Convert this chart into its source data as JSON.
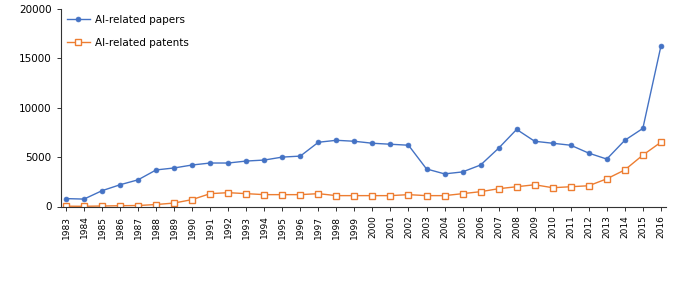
{
  "years": [
    1983,
    1984,
    1985,
    1986,
    1987,
    1988,
    1989,
    1990,
    1991,
    1992,
    1993,
    1994,
    1995,
    1996,
    1997,
    1998,
    1999,
    2000,
    2001,
    2002,
    2003,
    2004,
    2005,
    2006,
    2007,
    2008,
    2009,
    2010,
    2011,
    2012,
    2013,
    2014,
    2015,
    2016
  ],
  "papers": [
    800,
    750,
    1600,
    2200,
    2700,
    3700,
    3900,
    4200,
    4400,
    4400,
    4600,
    4700,
    5000,
    5100,
    6500,
    6700,
    6600,
    6400,
    6300,
    6200,
    3800,
    3300,
    3500,
    4200,
    5900,
    7800,
    6600,
    6400,
    6200,
    5400,
    4800,
    6700,
    7900,
    16200
  ],
  "patents": [
    30,
    20,
    50,
    80,
    100,
    200,
    350,
    700,
    1300,
    1400,
    1300,
    1200,
    1200,
    1200,
    1300,
    1100,
    1100,
    1100,
    1100,
    1200,
    1100,
    1100,
    1300,
    1500,
    1800,
    2000,
    2200,
    1900,
    2000,
    2100,
    2800,
    3700,
    5200,
    6500
  ],
  "papers_color": "#4472C4",
  "patents_color": "#ED7D31",
  "papers_label": "AI-related papers",
  "patents_label": "AI-related patents",
  "ylim": [
    0,
    20000
  ],
  "yticks": [
    0,
    5000,
    10000,
    15000,
    20000
  ],
  "background_color": "#ffffff",
  "legend_loc": "upper left"
}
